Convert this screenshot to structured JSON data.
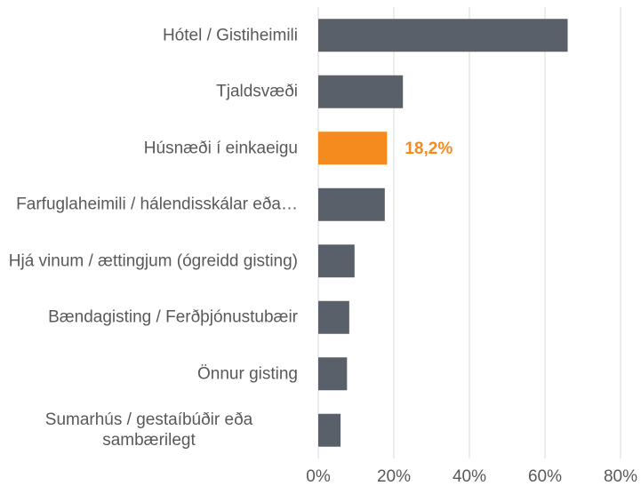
{
  "chart_data": {
    "type": "barh",
    "categories": [
      "Hótel / Gistiheimili",
      "Tjaldsvæði",
      "Húsnæði í einkaeigu",
      "Farfuglaheimili / hálendisskálar eða…",
      "Hjá vinum / ættingjum (ógreidd gisting)",
      "Bændagisting / Ferðþjónustubæir",
      "Önnur gisting",
      "Sumarhús / gestaíbúðir eða sambærilegt"
    ],
    "values": [
      66,
      22.4,
      18.2,
      17.6,
      9.6,
      8.2,
      7.6,
      5.9
    ],
    "value_labels": [
      null,
      null,
      "18,2%",
      null,
      null,
      null,
      null,
      null
    ],
    "colors": [
      "#596069",
      "#596069",
      "#f58a1f",
      "#596069",
      "#596069",
      "#596069",
      "#596069",
      "#596069"
    ],
    "xlim": [
      0,
      80
    ],
    "xticks": [
      {
        "value": 0,
        "label": "0%"
      },
      {
        "value": 20,
        "label": "20%"
      },
      {
        "value": 40,
        "label": "40%"
      },
      {
        "value": 60,
        "label": "60%"
      },
      {
        "value": 80,
        "label": "80%"
      }
    ],
    "grid": true
  }
}
